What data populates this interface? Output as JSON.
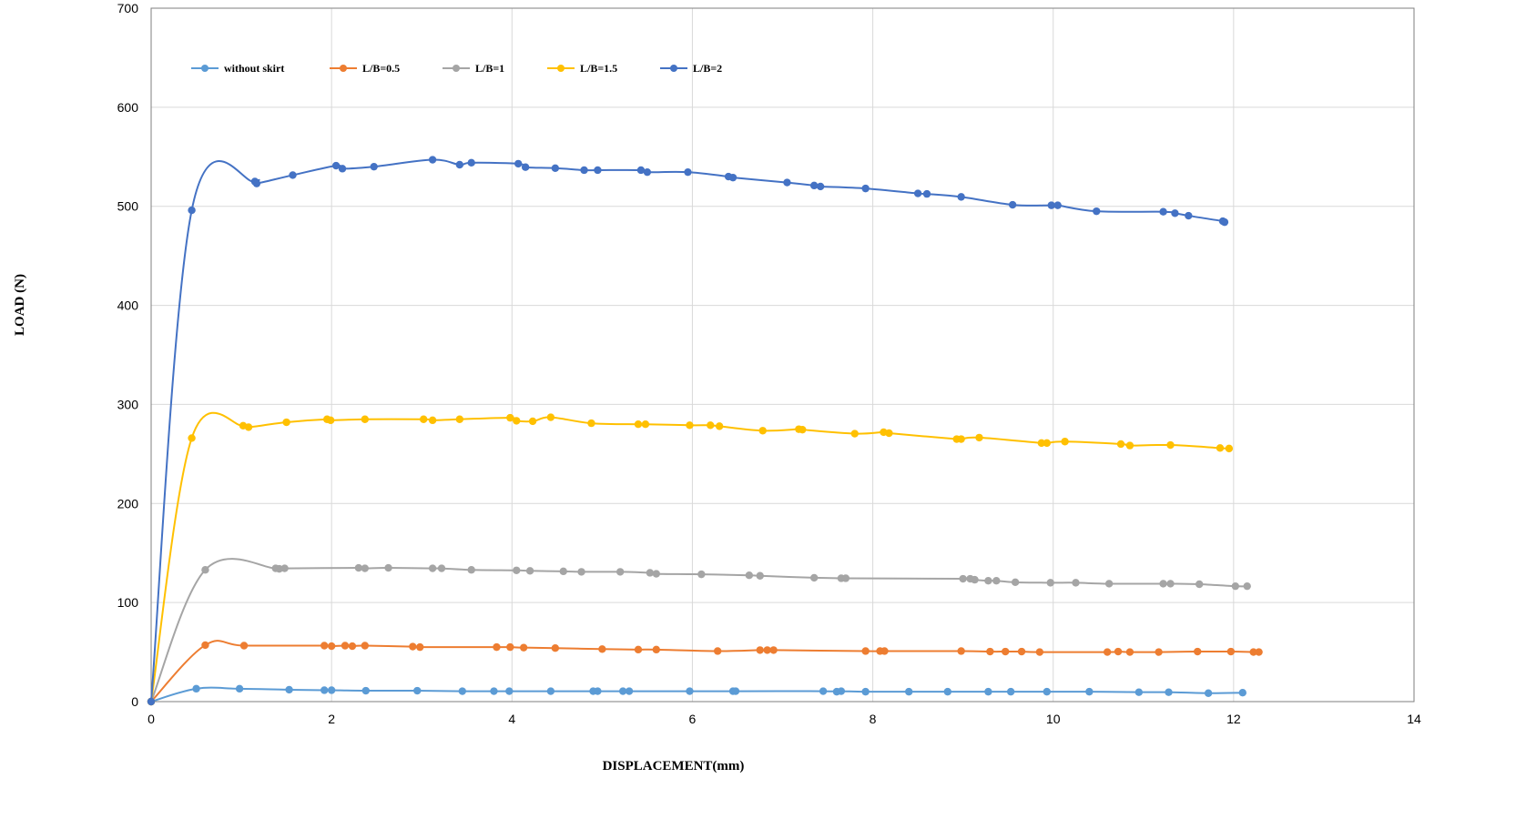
{
  "chart_data": {
    "type": "line",
    "xlabel": "DISPLACEMENT(mm)",
    "ylabel": "LOAD (N)",
    "xlim": [
      0,
      14
    ],
    "ylim": [
      0,
      700
    ],
    "x_ticks": [
      0,
      2,
      4,
      6,
      8,
      10,
      12,
      14
    ],
    "y_ticks": [
      0,
      100,
      200,
      300,
      400,
      500,
      600,
      700
    ],
    "grid": true,
    "legend_position": "top-left",
    "series": [
      {
        "name": "without skirt",
        "color": "#5b9bd5",
        "x": [
          0,
          0.5,
          0.98,
          1.53,
          1.92,
          2.0,
          2.38,
          2.95,
          3.45,
          3.8,
          3.97,
          4.43,
          4.9,
          4.95,
          5.23,
          5.3,
          5.97,
          6.45,
          6.48,
          7.45,
          7.6,
          7.65,
          7.92,
          8.4,
          8.83,
          9.28,
          9.53,
          9.93,
          10.4,
          10.95,
          11.28,
          11.72,
          12.1
        ],
        "y": [
          0,
          13,
          13,
          12,
          11.5,
          11.5,
          11,
          11,
          10.5,
          10.5,
          10.5,
          10.5,
          10.5,
          10.5,
          10.5,
          10.5,
          10.5,
          10.5,
          10.5,
          10.5,
          10,
          10.5,
          10,
          10,
          10,
          10,
          10,
          10,
          10,
          9.5,
          9.5,
          8.5,
          9
        ]
      },
      {
        "name": "L/B=0.5",
        "color": "#ed7d31",
        "x": [
          0,
          0.6,
          1.03,
          1.92,
          2.0,
          2.15,
          2.23,
          2.37,
          2.9,
          2.98,
          3.83,
          3.98,
          4.13,
          4.48,
          5.0,
          5.4,
          5.6,
          6.28,
          6.75,
          6.83,
          6.9,
          7.92,
          8.08,
          8.13,
          8.98,
          9.3,
          9.47,
          9.65,
          9.85,
          10.6,
          10.72,
          10.85,
          11.17,
          11.6,
          11.97,
          12.22,
          12.28
        ],
        "y": [
          0,
          57,
          56.5,
          56.5,
          56,
          56.5,
          56,
          56.5,
          55.5,
          55,
          55,
          55,
          54.5,
          54,
          53,
          52.5,
          52.5,
          51,
          52,
          52,
          52,
          51,
          51,
          51,
          51,
          50.5,
          50.5,
          50.5,
          50,
          50,
          50.5,
          50,
          50,
          50.5,
          50.5,
          50,
          50
        ]
      },
      {
        "name": "L/B=1",
        "color": "#a5a5a5",
        "x": [
          0,
          0.6,
          1.38,
          1.42,
          1.48,
          2.3,
          2.37,
          2.63,
          3.12,
          3.22,
          3.55,
          4.05,
          4.2,
          4.57,
          4.77,
          5.2,
          5.53,
          5.6,
          6.1,
          6.63,
          6.75,
          7.35,
          7.65,
          7.7,
          9.0,
          9.08,
          9.13,
          9.28,
          9.37,
          9.58,
          9.97,
          10.25,
          10.62,
          11.22,
          11.3,
          11.62,
          12.02,
          12.15
        ],
        "y": [
          0,
          133,
          134.5,
          134,
          134.5,
          135,
          134.5,
          135,
          134.5,
          134.5,
          133,
          132.5,
          132,
          131.5,
          131,
          131,
          130,
          129,
          128.5,
          127.5,
          127,
          125,
          124.5,
          124.5,
          124,
          124,
          123,
          122,
          122,
          120.5,
          120,
          120,
          119,
          119,
          119,
          118.5,
          116.5,
          116.5
        ]
      },
      {
        "name": "L/B=1.5",
        "color": "#ffc000",
        "x": [
          0,
          0.45,
          1.02,
          1.08,
          1.5,
          1.95,
          1.99,
          2.37,
          3.02,
          3.12,
          3.42,
          3.98,
          4.05,
          4.23,
          4.43,
          4.88,
          5.4,
          5.48,
          5.97,
          6.2,
          6.3,
          6.78,
          7.18,
          7.22,
          7.8,
          8.12,
          8.18,
          8.93,
          8.98,
          9.18,
          9.87,
          9.93,
          10.13,
          10.75,
          10.85,
          11.3,
          11.85,
          11.95
        ],
        "y": [
          0,
          266,
          278.5,
          277,
          282,
          285,
          284,
          285,
          285,
          284,
          285,
          286.5,
          283.5,
          283,
          287,
          281,
          280,
          280,
          279,
          279,
          278,
          273.5,
          275,
          274.5,
          270.5,
          272,
          271,
          265,
          265,
          266.5,
          261,
          261,
          262.5,
          260,
          258.5,
          259,
          256,
          255.5
        ]
      },
      {
        "name": "L/B=2",
        "color": "#4472c4",
        "x": [
          0,
          0.45,
          1.15,
          1.17,
          1.57,
          2.05,
          2.12,
          2.47,
          3.12,
          3.42,
          3.55,
          4.07,
          4.15,
          4.48,
          4.8,
          4.95,
          5.43,
          5.5,
          5.95,
          6.4,
          6.45,
          7.05,
          7.35,
          7.42,
          7.92,
          8.5,
          8.6,
          8.98,
          9.55,
          9.98,
          10.05,
          10.48,
          11.22,
          11.35,
          11.5,
          11.88,
          11.9
        ],
        "y": [
          0,
          496,
          525,
          523,
          531.5,
          541,
          538,
          540,
          547,
          542,
          544,
          543,
          539.5,
          538.5,
          536.5,
          536.5,
          536.5,
          534.5,
          534.5,
          530,
          529,
          524,
          521,
          520,
          518,
          513,
          512.5,
          509.5,
          501.5,
          501,
          501,
          495,
          494.5,
          493,
          490.5,
          485,
          484
        ]
      }
    ]
  }
}
